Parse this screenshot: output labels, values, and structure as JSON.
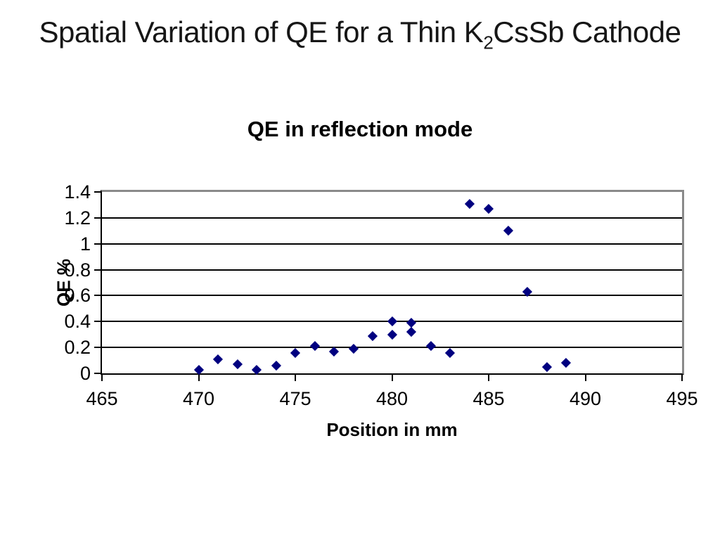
{
  "page": {
    "background": "#ffffff",
    "title": {
      "prefix": "Spatial Variation of QE for a Thin K",
      "subscript": "2",
      "suffix": "CsSb Cathode"
    }
  },
  "chart_data": {
    "type": "scatter",
    "title": "QE in reflection mode",
    "xlabel": "Position in mm",
    "ylabel": "QE %",
    "xlim": [
      465,
      495
    ],
    "ylim": [
      0,
      1.4
    ],
    "x_ticks": [
      "465",
      "470",
      "475",
      "480",
      "485",
      "490",
      "495"
    ],
    "y_ticks": [
      "0",
      "0.2",
      "0.4",
      "0.6",
      "0.8",
      "1",
      "1.2",
      "1.4"
    ],
    "grid": true,
    "legend": false,
    "marker": {
      "shape": "diamond",
      "color": "#000080",
      "size": 14
    },
    "colors": {
      "gridline": "#000000",
      "axis": "#000000",
      "plot_border": "#8a8a8a",
      "text": "#000000"
    },
    "series": [
      {
        "name": "QE in reflection mode",
        "points": [
          [
            470,
            0.03
          ],
          [
            471,
            0.11
          ],
          [
            472,
            0.07
          ],
          [
            473,
            0.03
          ],
          [
            474,
            0.06
          ],
          [
            475,
            0.16
          ],
          [
            476,
            0.21
          ],
          [
            477,
            0.17
          ],
          [
            478,
            0.19
          ],
          [
            479,
            0.29
          ],
          [
            480,
            0.4
          ],
          [
            480,
            0.3
          ],
          [
            481,
            0.39
          ],
          [
            481,
            0.32
          ],
          [
            482,
            0.21
          ],
          [
            483,
            0.16
          ],
          [
            484,
            1.31
          ],
          [
            485,
            1.27
          ],
          [
            486,
            1.1
          ],
          [
            487,
            0.63
          ],
          [
            488,
            0.05
          ],
          [
            489,
            0.08
          ]
        ]
      }
    ]
  }
}
